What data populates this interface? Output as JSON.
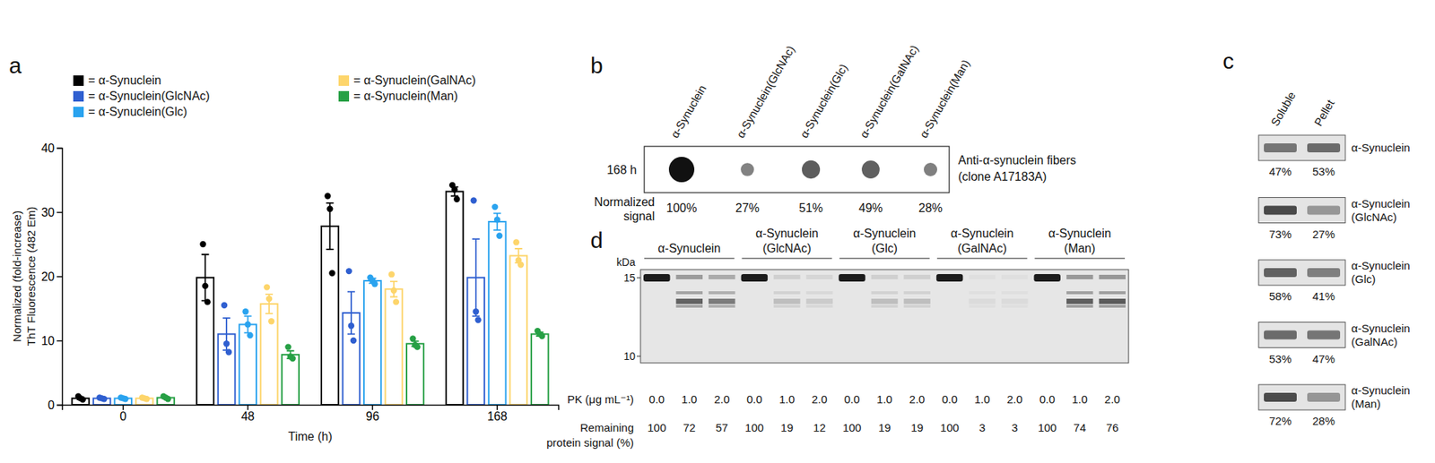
{
  "chart_data": {
    "type": "bar",
    "annotations": [
      "a"
    ],
    "xlabel": "Time (h)",
    "ylabel": "Normalized (fold-increase)\nThT Fluorescence (482 Em)",
    "categories": [
      "0",
      "48",
      "96",
      "168"
    ],
    "ylim": [
      0,
      40
    ],
    "yticks": [
      0,
      10,
      20,
      30,
      40
    ],
    "legend": "top",
    "series": [
      {
        "name": "= α-Synuclein",
        "color": "#000000",
        "values": [
          1.0,
          19.8,
          27.8,
          33.2
        ],
        "errors": [
          0.2,
          3.6,
          3.6,
          0.7
        ],
        "points": [
          [
            1.3,
            1.0,
            0.8
          ],
          [
            25.0,
            18.5,
            16.0
          ],
          [
            32.5,
            30.5,
            20.5
          ],
          [
            34.2,
            33.5,
            32.0
          ]
        ]
      },
      {
        "name": "= α-Synuclein(GlcNAc)",
        "color": "#2f5fd0",
        "values": [
          1.0,
          11.0,
          14.3,
          19.8
        ],
        "errors": [
          0.1,
          2.5,
          3.3,
          6.0
        ],
        "points": [
          [
            1.1,
            1.0,
            0.9
          ],
          [
            15.5,
            9.5,
            8.2
          ],
          [
            20.8,
            12.3,
            10.0
          ],
          [
            31.8,
            14.5,
            13.2
          ]
        ]
      },
      {
        "name": "= α-Synuclein(Glc)",
        "color": "#2aa3ef",
        "values": [
          1.0,
          12.5,
          19.3,
          28.5
        ],
        "errors": [
          0.1,
          1.3,
          0.4,
          1.3
        ],
        "points": [
          [
            1.1,
            1.0,
            0.9
          ],
          [
            14.5,
            12.5,
            10.8
          ],
          [
            19.8,
            19.3,
            18.8
          ],
          [
            30.8,
            28.8,
            26.3
          ]
        ]
      },
      {
        "name": "= α-Synuclein(GalNAc)",
        "color": "#fdd56b",
        "values": [
          1.0,
          15.7,
          18.0,
          23.2
        ],
        "errors": [
          0.1,
          1.5,
          1.2,
          1.1
        ],
        "points": [
          [
            1.1,
            1.0,
            0.9
          ],
          [
            18.3,
            16.5,
            13.0
          ],
          [
            20.3,
            17.8,
            16.0
          ],
          [
            25.3,
            22.5,
            21.8
          ]
        ]
      },
      {
        "name": "= α-Synuclein(Man)",
        "color": "#27a045",
        "values": [
          1.1,
          7.8,
          9.5,
          11.0
        ],
        "errors": [
          0.1,
          0.6,
          0.4,
          0.3
        ],
        "points": [
          [
            1.3,
            1.1,
            0.9
          ],
          [
            9.0,
            7.5,
            7.2
          ],
          [
            10.3,
            9.3,
            9.0
          ],
          [
            11.5,
            11.0,
            10.7
          ]
        ]
      }
    ]
  },
  "panel_b": {
    "label": "b",
    "columns": [
      "α-Synuclein",
      "α-Synuclein(GlcNAc)",
      "α-Synuclein(Glc)",
      "α-Synuclein(GalNAc)",
      "α-Synuclein(Man)"
    ],
    "row_label": "168 h",
    "antibody": [
      "Anti-α-synuclein fibers",
      "(clone A17183A)"
    ],
    "signal_title": [
      "Normalized",
      "signal"
    ],
    "signal": [
      100,
      27,
      51,
      49,
      28
    ],
    "signal_labels": [
      "100%",
      "27%",
      "51%",
      "49%",
      "28%"
    ]
  },
  "panel_c": {
    "label": "c",
    "columns": [
      "Soluble",
      "Pellet"
    ],
    "rows": [
      {
        "name": [
          "α-Synuclein"
        ],
        "values": [
          47,
          53
        ],
        "labels": [
          "47%",
          "53%"
        ]
      },
      {
        "name": [
          "α-Synuclein",
          "(GlcNAc)"
        ],
        "values": [
          73,
          27
        ],
        "labels": [
          "73%",
          "27%"
        ]
      },
      {
        "name": [
          "α-Synuclein",
          "(Glc)"
        ],
        "values": [
          58,
          41
        ],
        "labels": [
          "58%",
          "41%"
        ]
      },
      {
        "name": [
          "α-Synuclein",
          "(GalNAc)"
        ],
        "values": [
          53,
          47
        ],
        "labels": [
          "53%",
          "47%"
        ]
      },
      {
        "name": [
          "α-Synuclein",
          "(Man)"
        ],
        "values": [
          72,
          28
        ],
        "labels": [
          "72%",
          "28%"
        ]
      }
    ]
  },
  "panel_d": {
    "label": "d",
    "unit": "kDa",
    "markers": [
      15,
      10
    ],
    "pk_title": "PK (μg mL⁻¹)",
    "remaining_title": [
      "Remaining",
      "protein signal (%)"
    ],
    "groups": [
      {
        "name": [
          "α-Synuclein"
        ],
        "pk": [
          "0.0",
          "1.0",
          "2.0"
        ],
        "remaining": [
          100,
          72,
          57
        ]
      },
      {
        "name": [
          "α-Synuclein",
          "(GlcNAc)"
        ],
        "pk": [
          "0.0",
          "1.0",
          "2.0"
        ],
        "remaining": [
          100,
          19,
          12
        ]
      },
      {
        "name": [
          "α-Synuclein",
          "(Glc)"
        ],
        "pk": [
          "0.0",
          "1.0",
          "2.0"
        ],
        "remaining": [
          100,
          19,
          19
        ]
      },
      {
        "name": [
          "α-Synuclein",
          "(GalNAc)"
        ],
        "pk": [
          "0.0",
          "1.0",
          "2.0"
        ],
        "remaining": [
          100,
          3,
          3
        ]
      },
      {
        "name": [
          "α-Synuclein",
          "(Man)"
        ],
        "pk": [
          "0.0",
          "1.0",
          "2.0"
        ],
        "remaining": [
          100,
          74,
          76
        ]
      }
    ]
  }
}
